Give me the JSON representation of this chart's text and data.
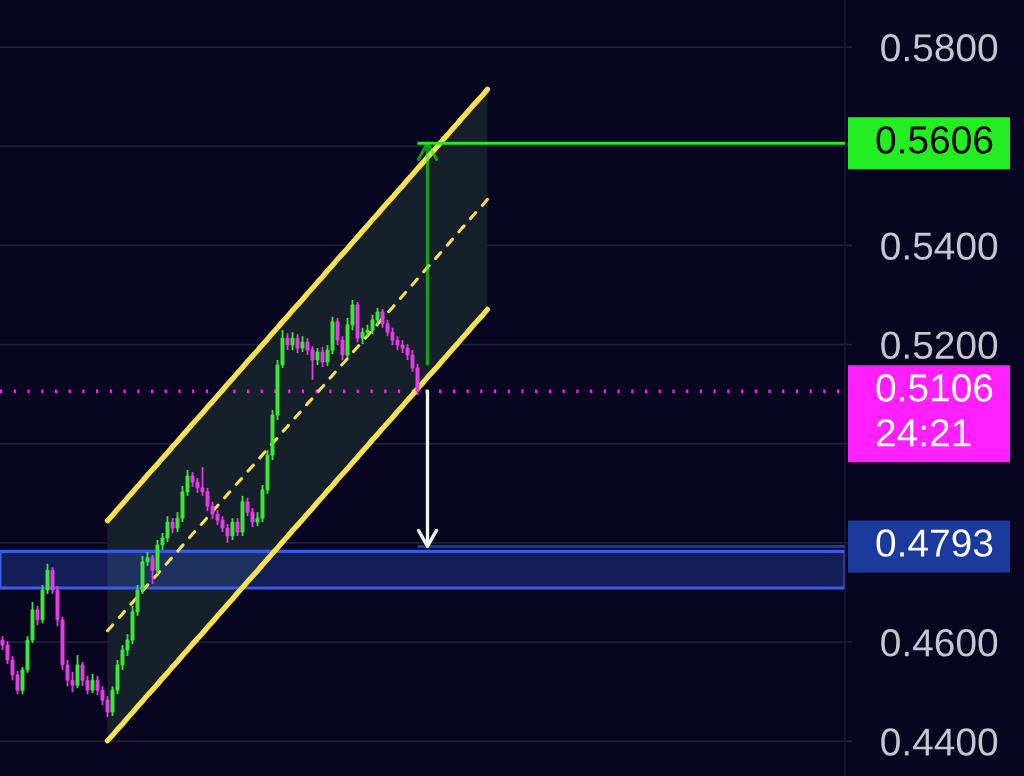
{
  "chart_data": {
    "type": "candlestick",
    "categories": [
      null,
      null,
      null,
      null,
      null,
      null,
      null,
      null,
      null,
      null,
      null,
      null,
      null,
      null,
      null,
      null,
      null,
      null,
      null,
      null,
      null,
      null,
      null,
      null,
      null,
      null,
      null,
      null,
      null,
      null,
      null,
      null,
      null,
      null,
      null,
      null,
      null,
      null,
      null,
      null,
      null,
      null,
      null,
      null,
      null,
      null,
      null,
      null,
      null,
      null,
      null,
      null,
      null,
      null,
      null,
      null,
      null,
      null,
      null,
      null,
      null,
      null,
      null,
      null,
      null,
      null,
      null,
      null,
      null,
      null,
      null,
      null,
      null,
      null,
      null,
      null,
      null,
      null,
      null,
      null,
      null,
      null,
      null,
      null,
      null,
      null,
      null,
      null,
      null,
      null,
      null,
      null,
      null,
      null,
      null,
      null,
      null,
      null,
      null,
      null,
      null,
      null,
      null,
      null,
      null,
      null,
      null,
      null,
      null,
      null,
      null,
      null,
      null,
      null,
      null,
      null,
      null,
      null,
      null,
      null,
      null,
      null,
      null,
      null,
      null,
      null,
      null,
      null,
      null,
      null,
      null,
      null,
      null,
      null,
      null,
      null,
      null,
      null,
      null,
      null,
      null,
      null,
      null,
      null,
      null,
      null,
      null,
      null,
      null,
      null,
      null,
      null,
      null,
      null,
      null,
      null,
      null,
      null,
      null,
      null,
      null,
      null,
      null,
      null,
      null,
      null,
      null,
      null,
      null
    ],
    "ohlc": [
      [
        0.4604,
        0.4612,
        0.4584,
        0.4594
      ],
      [
        0.4594,
        0.4602,
        0.4556,
        0.4564
      ],
      [
        0.4564,
        0.4572,
        0.4523,
        0.4534
      ],
      [
        0.4534,
        0.4542,
        0.4495,
        0.4503
      ],
      [
        0.4503,
        0.455,
        0.4495,
        0.4544
      ],
      [
        0.4544,
        0.4612,
        0.4538,
        0.4604
      ],
      [
        0.4604,
        0.4681,
        0.4598,
        0.4665
      ],
      [
        0.4665,
        0.4673,
        0.4634,
        0.4645
      ],
      [
        0.4645,
        0.4715,
        0.4638,
        0.4705
      ],
      [
        0.4705,
        0.4758,
        0.4697,
        0.4745
      ],
      [
        0.4745,
        0.4751,
        0.4697,
        0.4705
      ],
      [
        0.4705,
        0.4713,
        0.4632,
        0.4645
      ],
      [
        0.4645,
        0.4651,
        0.4544,
        0.4554
      ],
      [
        0.4554,
        0.4564,
        0.4511,
        0.4523
      ],
      [
        0.4523,
        0.454,
        0.4499,
        0.4513
      ],
      [
        0.4513,
        0.4574,
        0.4507,
        0.4554
      ],
      [
        0.4554,
        0.456,
        0.4511,
        0.4523
      ],
      [
        0.4523,
        0.4532,
        0.4495,
        0.4503
      ],
      [
        0.4503,
        0.4536,
        0.4497,
        0.4523
      ],
      [
        0.4523,
        0.4532,
        0.4493,
        0.4503
      ],
      [
        0.4503,
        0.4511,
        0.4473,
        0.4483
      ],
      [
        0.4483,
        0.4491,
        0.4449,
        0.4459
      ],
      [
        0.4459,
        0.4511,
        0.4451,
        0.4503
      ],
      [
        0.4503,
        0.4564,
        0.4495,
        0.4554
      ],
      [
        0.4554,
        0.4594,
        0.4544,
        0.4584
      ],
      [
        0.4584,
        0.4616,
        0.4572,
        0.4604
      ],
      [
        0.4604,
        0.4673,
        0.4596,
        0.4661
      ],
      [
        0.4661,
        0.4715,
        0.4653,
        0.4705
      ],
      [
        0.4705,
        0.4774,
        0.4697,
        0.4762
      ],
      [
        0.4762,
        0.4782,
        0.4754,
        0.477
      ],
      [
        0.477,
        0.4776,
        0.4717,
        0.4745
      ],
      [
        0.4745,
        0.4806,
        0.4737,
        0.4796
      ],
      [
        0.4796,
        0.482,
        0.4786,
        0.481
      ],
      [
        0.481,
        0.4854,
        0.4802,
        0.4842
      ],
      [
        0.4842,
        0.485,
        0.482,
        0.483
      ],
      [
        0.483,
        0.4862,
        0.4822,
        0.485
      ],
      [
        0.485,
        0.4915,
        0.4842,
        0.4903
      ],
      [
        0.4903,
        0.4947,
        0.4895,
        0.4935
      ],
      [
        0.4935,
        0.4943,
        0.4913,
        0.4923
      ],
      [
        0.4923,
        0.4931,
        0.4901,
        0.4911
      ],
      [
        0.4911,
        0.4953,
        0.4895,
        0.4903
      ],
      [
        0.4903,
        0.4911,
        0.4864,
        0.4874
      ],
      [
        0.4874,
        0.4883,
        0.4848,
        0.4858
      ],
      [
        0.4858,
        0.4866,
        0.4836,
        0.4846
      ],
      [
        0.4846,
        0.4854,
        0.4822,
        0.483
      ],
      [
        0.483,
        0.4838,
        0.48,
        0.4814
      ],
      [
        0.4814,
        0.485,
        0.4806,
        0.4842
      ],
      [
        0.4842,
        0.485,
        0.4814,
        0.4822
      ],
      [
        0.4822,
        0.4895,
        0.4814,
        0.4883
      ],
      [
        0.4883,
        0.4891,
        0.4854,
        0.4862
      ],
      [
        0.4862,
        0.487,
        0.4832,
        0.4842
      ],
      [
        0.4842,
        0.4862,
        0.4834,
        0.485
      ],
      [
        0.485,
        0.4917,
        0.4842,
        0.4907
      ],
      [
        0.4907,
        0.4987,
        0.4899,
        0.4977
      ],
      [
        0.4977,
        0.5068,
        0.4967,
        0.5058
      ],
      [
        0.5058,
        0.5169,
        0.5048,
        0.5159
      ],
      [
        0.5159,
        0.5229,
        0.5153,
        0.5213
      ],
      [
        0.5213,
        0.5223,
        0.5189,
        0.5199
      ],
      [
        0.5199,
        0.5225,
        0.5189,
        0.5213
      ],
      [
        0.5213,
        0.5221,
        0.5183,
        0.5193
      ],
      [
        0.5193,
        0.5217,
        0.5185,
        0.5205
      ],
      [
        0.5205,
        0.5213,
        0.5179,
        0.5189
      ],
      [
        0.5189,
        0.5197,
        0.5129,
        0.5169
      ],
      [
        0.5169,
        0.5193,
        0.5159,
        0.5185
      ],
      [
        0.5185,
        0.5195,
        0.5155,
        0.5165
      ],
      [
        0.5165,
        0.5199,
        0.5157,
        0.5189
      ],
      [
        0.5189,
        0.5256,
        0.5181,
        0.5246
      ],
      [
        0.5246,
        0.5254,
        0.5199,
        0.5209
      ],
      [
        0.5209,
        0.5217,
        0.5169,
        0.5179
      ],
      [
        0.5179,
        0.5254,
        0.5173,
        0.524
      ],
      [
        0.524,
        0.529,
        0.5229,
        0.528
      ],
      [
        0.528,
        0.5286,
        0.5205,
        0.5213
      ],
      [
        0.5213,
        0.5234,
        0.5201,
        0.5225
      ],
      [
        0.5225,
        0.524,
        0.5215,
        0.5229
      ],
      [
        0.5229,
        0.526,
        0.5221,
        0.525
      ],
      [
        0.525,
        0.5274,
        0.524,
        0.5266
      ],
      [
        0.5266,
        0.5272,
        0.5234,
        0.5242
      ],
      [
        0.5242,
        0.525,
        0.5217,
        0.5225
      ],
      [
        0.5225,
        0.5234,
        0.5199,
        0.5209
      ],
      [
        0.5209,
        0.5217,
        0.5189,
        0.5199
      ],
      [
        0.5199,
        0.5209,
        0.5183,
        0.5193
      ],
      [
        0.5193,
        0.5201,
        0.5169,
        0.5179
      ],
      [
        0.5179,
        0.5189,
        0.5145,
        0.5153
      ],
      [
        0.5153,
        0.5161,
        0.5098,
        0.5106
      ],
      null,
      null,
      null,
      null,
      null,
      null,
      null,
      null,
      null,
      null,
      null,
      null,
      null,
      null,
      null,
      null,
      null,
      null,
      null,
      null,
      null,
      null,
      null,
      null,
      null,
      null,
      null,
      null,
      null,
      null,
      null,
      null,
      null,
      null,
      null,
      null,
      null,
      null,
      null,
      null,
      null,
      null,
      null,
      null,
      null,
      null,
      null,
      null,
      null,
      null,
      null,
      null,
      null,
      null,
      null,
      null,
      null,
      null,
      null,
      null,
      null,
      null,
      null,
      null,
      null,
      null,
      null,
      null,
      null,
      null,
      null,
      null,
      null,
      null,
      null,
      null,
      null,
      null,
      null,
      null,
      null,
      null,
      null,
      null,
      null
    ],
    "colors": [
      "#e23ee2",
      "#e23ee2",
      "#e23ee2",
      "#e23ee2",
      "#3de63d",
      "#3de63d",
      "#3de63d",
      "#e23ee2",
      "#3de63d",
      "#3de63d",
      "#e23ee2",
      "#e23ee2",
      "#e23ee2",
      "#e23ee2",
      "#e23ee2",
      "#3de63d",
      "#e23ee2",
      "#e23ee2",
      "#3de63d",
      "#e23ee2",
      "#e23ee2",
      "#e23ee2",
      "#3de63d",
      "#3de63d",
      "#3de63d",
      "#3de63d",
      "#3de63d",
      "#3de63d",
      "#3de63d",
      "#3de63d",
      "#e23ee2",
      "#3de63d",
      "#3de63d",
      "#3de63d",
      "#e23ee2",
      "#3de63d",
      "#3de63d",
      "#3de63d",
      "#e23ee2",
      "#e23ee2",
      "#e23ee2",
      "#e23ee2",
      "#e23ee2",
      "#e23ee2",
      "#e23ee2",
      "#e23ee2",
      "#3de63d",
      "#e23ee2",
      "#3de63d",
      "#e23ee2",
      "#e23ee2",
      "#3de63d",
      "#3de63d",
      "#3de63d",
      "#3de63d",
      "#3de63d",
      "#3de63d",
      "#e23ee2",
      "#3de63d",
      "#e23ee2",
      "#3de63d",
      "#e23ee2",
      "#e23ee2",
      "#3de63d",
      "#e23ee2",
      "#3de63d",
      "#3de63d",
      "#e23ee2",
      "#e23ee2",
      "#3de63d",
      "#3de63d",
      "#e23ee2",
      "#3de63d",
      "#3de63d",
      "#3de63d",
      "#3de63d",
      "#e23ee2",
      "#e23ee2",
      "#e23ee2",
      "#e23ee2",
      "#e23ee2",
      "#e23ee2",
      "#e23ee2",
      "#e23ee2",
      null,
      null,
      null,
      null,
      null,
      null,
      null,
      null,
      null,
      null,
      null,
      null,
      null,
      null,
      null,
      null,
      null,
      null,
      null,
      null,
      null,
      null,
      null,
      null,
      null,
      null,
      null,
      null,
      null,
      null,
      null,
      null,
      null,
      null,
      null,
      null,
      null,
      null,
      null,
      null,
      null,
      null,
      null,
      null,
      null,
      null,
      null,
      null,
      null,
      null,
      null,
      null,
      null,
      null,
      null,
      null,
      null,
      null,
      null,
      null,
      null,
      null,
      null,
      null,
      null,
      null,
      null,
      null,
      null,
      null,
      null,
      null,
      null,
      null,
      null,
      null,
      null,
      null,
      null,
      null,
      null,
      null,
      null,
      null,
      null
    ],
    "series": [
      {
        "type": "line",
        "color": "#f7e14c",
        "line_style": "solid",
        "values": [
          null,
          null,
          null,
          null,
          null,
          null,
          null,
          null,
          null,
          null,
          null,
          null,
          null,
          null,
          null,
          null,
          null,
          null,
          null,
          null,
          null,
          0.4845,
          0.4856,
          0.4868,
          0.4879,
          0.4891,
          0.4902,
          0.4914,
          0.4925,
          0.4937,
          0.4948,
          0.4959,
          0.4971,
          0.4982,
          0.4994,
          0.5005,
          0.5017,
          0.5028,
          0.504,
          0.5051,
          0.5062,
          0.5074,
          0.5085,
          0.5097,
          0.5108,
          0.512,
          0.5131,
          0.5143,
          0.5154,
          0.5166,
          0.5177,
          0.5188,
          0.52,
          0.5211,
          0.5223,
          0.5234,
          0.5246,
          0.5257,
          0.5269,
          0.528,
          0.5291,
          0.5303,
          0.5314,
          0.5326,
          0.5337,
          0.5349,
          0.536,
          0.5372,
          0.5383,
          0.5394,
          0.5406,
          0.5417,
          0.5429,
          0.544,
          0.5452,
          0.5463,
          0.5475,
          0.5486,
          0.5497,
          0.5509,
          0.552,
          0.5532,
          0.5543,
          0.5555,
          0.5566,
          0.5578,
          0.5589,
          0.56,
          0.5612,
          0.5623,
          0.5635,
          0.5646,
          0.5658,
          0.5669,
          0.5681,
          0.5692,
          0.5703,
          0.5715,
          null,
          null,
          null,
          null,
          null,
          null,
          null,
          null,
          null,
          null,
          null,
          null,
          null,
          null,
          null,
          null,
          null,
          null,
          null,
          null,
          null,
          null,
          null,
          null,
          null,
          null,
          null,
          null,
          null,
          null,
          null,
          null,
          null,
          null,
          null,
          null,
          null,
          null,
          null,
          null,
          null,
          null,
          null,
          null,
          null,
          null,
          null,
          null,
          null,
          null,
          null,
          null,
          null,
          null,
          null,
          null,
          null,
          null,
          null,
          null,
          null,
          null,
          null,
          null,
          null,
          null,
          null,
          null,
          null,
          null,
          null
        ]
      },
      {
        "type": "line",
        "color": "#f7e14c",
        "line_style": "dashed",
        "values": [
          null,
          null,
          null,
          null,
          null,
          null,
          null,
          null,
          null,
          null,
          null,
          null,
          null,
          null,
          null,
          null,
          null,
          null,
          null,
          null,
          null,
          0.4623,
          0.4634,
          0.4646,
          0.4657,
          0.4669,
          0.468,
          0.4692,
          0.4703,
          0.4715,
          0.4726,
          0.4737,
          0.4749,
          0.476,
          0.4772,
          0.4783,
          0.4795,
          0.4806,
          0.4818,
          0.4829,
          0.484,
          0.4852,
          0.4863,
          0.4875,
          0.4886,
          0.4898,
          0.4909,
          0.4921,
          0.4932,
          0.4944,
          0.4955,
          0.4966,
          0.4978,
          0.4989,
          0.5001,
          0.5012,
          0.5024,
          0.5035,
          0.5047,
          0.5058,
          0.5069,
          0.5081,
          0.5092,
          0.5104,
          0.5115,
          0.5127,
          0.5138,
          0.515,
          0.5161,
          0.5172,
          0.5184,
          0.5195,
          0.5207,
          0.5218,
          0.523,
          0.5241,
          0.5253,
          0.5264,
          0.5275,
          0.5287,
          0.5298,
          0.531,
          0.5321,
          0.5333,
          0.5344,
          0.5356,
          0.5367,
          0.5378,
          0.539,
          0.5401,
          0.5413,
          0.5424,
          0.5436,
          0.5447,
          0.5459,
          0.547,
          0.5481,
          0.5493,
          null,
          null,
          null,
          null,
          null,
          null,
          null,
          null,
          null,
          null,
          null,
          null,
          null,
          null,
          null,
          null,
          null,
          null,
          null,
          null,
          null,
          null,
          null,
          null,
          null,
          null,
          null,
          null,
          null,
          null,
          null,
          null,
          null,
          null,
          null,
          null,
          null,
          null,
          null,
          null,
          null,
          null,
          null,
          null,
          null,
          null,
          null,
          null,
          null,
          null,
          null,
          null,
          null,
          null,
          null,
          null,
          null,
          null,
          null,
          null,
          null,
          null,
          null,
          null,
          null,
          null,
          null,
          null,
          null,
          null,
          null
        ],
        "lower": [
          null,
          null,
          null,
          null,
          null,
          null,
          null,
          null,
          null,
          null,
          null,
          null,
          null,
          null,
          null,
          null,
          null,
          null,
          null,
          null,
          null,
          0.4401,
          0.4412,
          0.4424,
          0.4435,
          0.4447,
          0.4458,
          0.447,
          0.4481,
          0.4493,
          0.4504,
          0.4515,
          0.4527,
          0.4538,
          0.455,
          0.4561,
          0.4573,
          0.4584,
          0.4596,
          0.4607,
          0.4618,
          0.463,
          0.4641,
          0.4653,
          0.4664,
          0.4676,
          0.4687,
          0.4699,
          0.471,
          0.4722,
          0.4733,
          0.4744,
          0.4756,
          0.4767,
          0.4779,
          0.479,
          0.4802,
          0.4813,
          0.4825,
          0.4836,
          0.4847,
          0.4859,
          0.487,
          0.4882,
          0.4893,
          0.4905,
          0.4916,
          0.4928,
          0.4939,
          0.495,
          0.4962,
          0.4973,
          0.4985,
          0.4996,
          0.5008,
          0.5019,
          0.5031,
          0.5042,
          0.5053,
          0.5065,
          0.5076,
          0.5088,
          0.5099,
          0.5111,
          0.5122,
          0.5134,
          0.5145,
          0.5156,
          0.5168,
          0.5179,
          0.5191,
          0.5202,
          0.5214,
          0.5225,
          0.5237,
          0.5248,
          0.5259,
          0.5271,
          null,
          null,
          null,
          null,
          null,
          null,
          null,
          null,
          null,
          null,
          null,
          null,
          null,
          null,
          null,
          null,
          null,
          null,
          null,
          null,
          null,
          null,
          null,
          null,
          null,
          null,
          null,
          null,
          null,
          null,
          null,
          null,
          null,
          null,
          null,
          null,
          null,
          null,
          null,
          null,
          null,
          null,
          null,
          null,
          null,
          null,
          null,
          null,
          null,
          null,
          null,
          null,
          null,
          null,
          null,
          null,
          null,
          null,
          null,
          null,
          null,
          null,
          null,
          null,
          null,
          null,
          null,
          null,
          null,
          null,
          null
        ],
        "upper": [
          null,
          null,
          null,
          null,
          null,
          null,
          null,
          null,
          null,
          null,
          null,
          null,
          null,
          null,
          null,
          null,
          null,
          null,
          null,
          null,
          null,
          0.4845,
          0.4856,
          0.4868,
          0.4879,
          0.4891,
          0.4902,
          0.4914,
          0.4925,
          0.4937,
          0.4948,
          0.4959,
          0.4971,
          0.4982,
          0.4994,
          0.5005,
          0.5017,
          0.5028,
          0.504,
          0.5051,
          0.5062,
          0.5074,
          0.5085,
          0.5097,
          0.5108,
          0.512,
          0.5131,
          0.5143,
          0.5154,
          0.5166,
          0.5177,
          0.5188,
          0.52,
          0.5211,
          0.5223,
          0.5234,
          0.5246,
          0.5257,
          0.5269,
          0.528,
          0.5291,
          0.5303,
          0.5314,
          0.5326,
          0.5337,
          0.5349,
          0.536,
          0.5372,
          0.5383,
          0.5394,
          0.5406,
          0.5417,
          0.5429,
          0.544,
          0.5452,
          0.5463,
          0.5475,
          0.5486,
          0.5497,
          0.5509,
          0.552,
          0.5532,
          0.5543,
          0.5555,
          0.5566,
          0.5578,
          0.5589,
          0.56,
          0.5612,
          0.5623,
          0.5635,
          0.5646,
          0.5658,
          0.5669,
          0.5681,
          0.5692,
          0.5703,
          0.5715,
          null,
          null,
          null,
          null,
          null,
          null,
          null,
          null,
          null,
          null,
          null,
          null,
          null,
          null,
          null,
          null,
          null,
          null,
          null,
          null,
          null,
          null,
          null,
          null,
          null,
          null,
          null,
          null,
          null,
          null,
          null,
          null,
          null,
          null,
          null,
          null,
          null,
          null,
          null,
          null,
          null,
          null,
          null,
          null,
          null,
          null,
          null,
          null,
          null,
          null,
          null,
          null,
          null,
          null,
          null,
          null,
          null,
          null,
          null,
          null,
          null,
          null,
          null,
          null,
          null,
          null,
          null,
          null,
          null,
          null,
          null
        ]
      },
      {
        "type": "line",
        "color": "#f7e14c",
        "line_style": "solid",
        "values": [
          null,
          null,
          null,
          null,
          null,
          null,
          null,
          null,
          null,
          null,
          null,
          null,
          null,
          null,
          null,
          null,
          null,
          null,
          null,
          null,
          null,
          0.4401,
          0.4412,
          0.4424,
          0.4435,
          0.4447,
          0.4458,
          0.447,
          0.4481,
          0.4493,
          0.4504,
          0.4515,
          0.4527,
          0.4538,
          0.455,
          0.4561,
          0.4573,
          0.4584,
          0.4596,
          0.4607,
          0.4618,
          0.463,
          0.4641,
          0.4653,
          0.4664,
          0.4676,
          0.4687,
          0.4699,
          0.471,
          0.4722,
          0.4733,
          0.4744,
          0.4756,
          0.4767,
          0.4779,
          0.479,
          0.4802,
          0.4813,
          0.4825,
          0.4836,
          0.4847,
          0.4859,
          0.487,
          0.4882,
          0.4893,
          0.4905,
          0.4916,
          0.4928,
          0.4939,
          0.495,
          0.4962,
          0.4973,
          0.4985,
          0.4996,
          0.5008,
          0.5019,
          0.5031,
          0.5042,
          0.5053,
          0.5065,
          0.5076,
          0.5088,
          0.5099,
          0.5111,
          0.5122,
          0.5134,
          0.5145,
          0.5156,
          0.5168,
          0.5179,
          0.5191,
          0.5202,
          0.5214,
          0.5225,
          0.5237,
          0.5248,
          0.5259,
          0.5271,
          null,
          null,
          null,
          null,
          null,
          null,
          null,
          null,
          null,
          null,
          null,
          null,
          null,
          null,
          null,
          null,
          null,
          null,
          null,
          null,
          null,
          null,
          null,
          null,
          null,
          null,
          null,
          null,
          null,
          null,
          null,
          null,
          null,
          null,
          null,
          null,
          null,
          null,
          null,
          null,
          null,
          null,
          null,
          null,
          null,
          null,
          null,
          null,
          null,
          null,
          null,
          null,
          null,
          null,
          null,
          null,
          null,
          null,
          null,
          null,
          null,
          null,
          null,
          null,
          null,
          null,
          null,
          null,
          null,
          null,
          null
        ]
      }
    ],
    "ref_lines": [
      {
        "axis": "y",
        "value": 0.5606,
        "label": "0.5606",
        "color": "#22ee22",
        "line_style": "solid"
      },
      {
        "axis": "y",
        "value": 0.5106,
        "label": "0.5106\n24:21",
        "color": "#ff1fff",
        "line_style": "dotted"
      },
      {
        "axis": "y",
        "value": 0.4793,
        "label": "0.4793",
        "color": "#1b3a9e",
        "line_style": "solid"
      }
    ],
    "bands": [
      {
        "axis": "y",
        "from": 0.4709,
        "to": 0.4783,
        "color": "#3a5ce8"
      }
    ],
    "ylim": [
      0.433,
      0.5895
    ],
    "yticks": [
      {
        "value": 0.44,
        "label": "0.4400"
      },
      {
        "value": 0.46,
        "label": "0.4600"
      },
      {
        "value": 0.48,
        "label": null
      },
      {
        "value": 0.5,
        "label": null
      },
      {
        "value": 0.52,
        "label": "0.5200"
      },
      {
        "value": 0.54,
        "label": "0.5400"
      },
      {
        "value": 0.56,
        "label": null
      },
      {
        "value": 0.58,
        "label": "0.5800"
      }
    ],
    "grid": "y"
  }
}
